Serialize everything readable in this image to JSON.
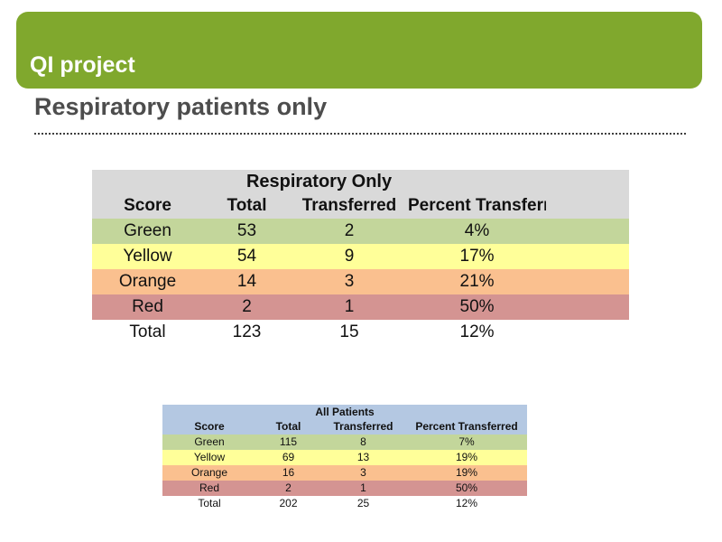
{
  "slide": {
    "banner_title": "QI project",
    "heading": "Respiratory patients only"
  },
  "colors": {
    "banner_green": "#80a82d",
    "header_gray": "#d9d9d9",
    "header_blue": "#b4c8e2",
    "row_green": "#c3d69b",
    "row_yellow": "#ffff99",
    "row_orange": "#fac08f",
    "row_red": "#d49492",
    "row_none": "transparent",
    "heading_text": "#4d4d4d"
  },
  "tables": [
    {
      "title": "Respiratory Only",
      "header_color": "header_gray",
      "columns": [
        "Score",
        "Total",
        "Transferred",
        "Percent Transferred"
      ],
      "rows": [
        {
          "score": "Green",
          "total": "53",
          "transferred": "2",
          "percent": "4%",
          "color": "row_green"
        },
        {
          "score": "Yellow",
          "total": "54",
          "transferred": "9",
          "percent": "17%",
          "color": "row_yellow"
        },
        {
          "score": "Orange",
          "total": "14",
          "transferred": "3",
          "percent": "21%",
          "color": "row_orange"
        },
        {
          "score": "Red",
          "total": "2",
          "transferred": "1",
          "percent": "50%",
          "color": "row_red"
        },
        {
          "score": "Total",
          "total": "123",
          "transferred": "15",
          "percent": "12%",
          "color": "row_none"
        }
      ]
    },
    {
      "title": "All Patients",
      "header_color": "header_blue",
      "columns": [
        "Score",
        "Total",
        "Transferred",
        "Percent Transferred"
      ],
      "rows": [
        {
          "score": "Green",
          "total": "115",
          "transferred": "8",
          "percent": "7%",
          "color": "row_green"
        },
        {
          "score": "Yellow",
          "total": "69",
          "transferred": "13",
          "percent": "19%",
          "color": "row_yellow"
        },
        {
          "score": "Orange",
          "total": "16",
          "transferred": "3",
          "percent": "19%",
          "color": "row_orange"
        },
        {
          "score": "Red",
          "total": "2",
          "transferred": "1",
          "percent": "50%",
          "color": "row_red"
        },
        {
          "score": "Total",
          "total": "202",
          "transferred": "25",
          "percent": "12%",
          "color": "row_none"
        }
      ]
    }
  ]
}
